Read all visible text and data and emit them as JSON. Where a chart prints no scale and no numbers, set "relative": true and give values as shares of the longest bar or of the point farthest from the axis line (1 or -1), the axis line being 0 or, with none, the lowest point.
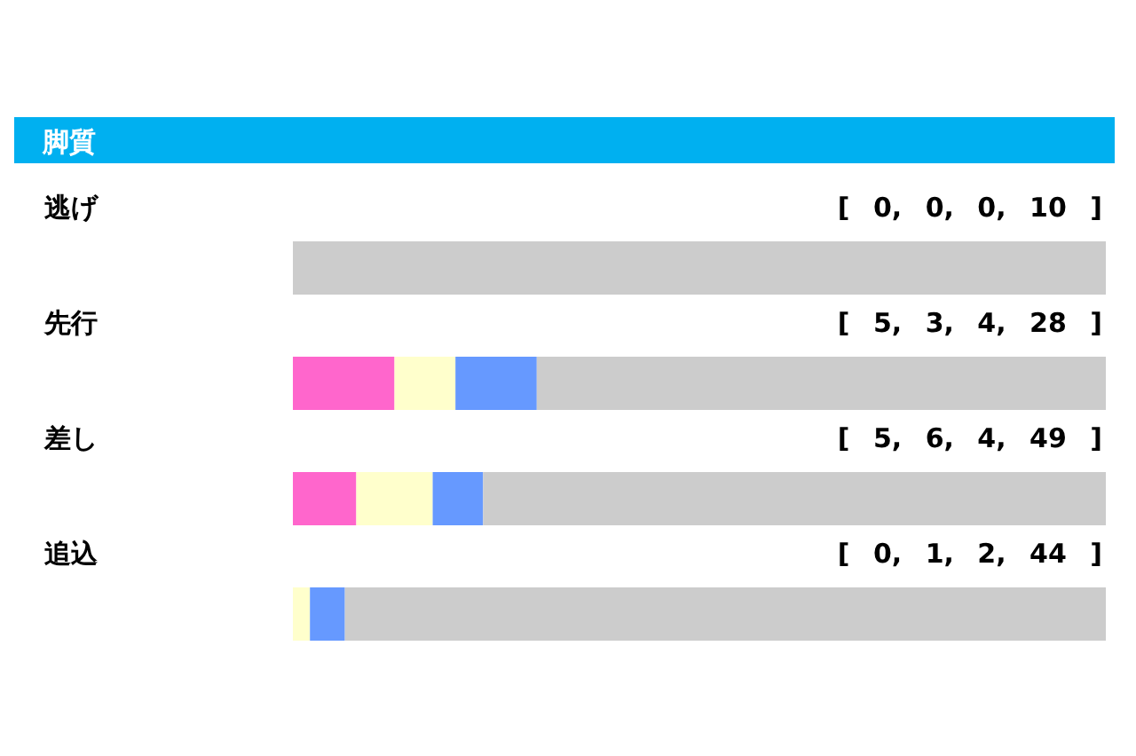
{
  "chart_data": {
    "type": "bar",
    "orientation": "horizontal",
    "stacked": true,
    "relative": true,
    "title": "脚質",
    "categories": [
      "逃げ",
      "先行",
      "差し",
      "追込"
    ],
    "series": [
      {
        "color": "#ff66cc",
        "values": [
          0,
          0.125,
          0.078,
          0
        ]
      },
      {
        "color": "#ffffcc",
        "values": [
          0,
          0.075,
          0.094,
          0.021
        ]
      },
      {
        "color": "#6699ff",
        "values": [
          0,
          0.1,
          0.062,
          0.043
        ]
      },
      {
        "color": "#cccccc",
        "values": [
          1,
          0.7,
          0.766,
          0.936
        ]
      }
    ],
    "annotations": [
      "[ 0, 0, 0, 10 ]",
      "[ 5, 3, 4, 28 ]",
      "[ 5, 6, 4, 49 ]",
      "[ 0, 1, 2, 44 ]"
    ]
  }
}
